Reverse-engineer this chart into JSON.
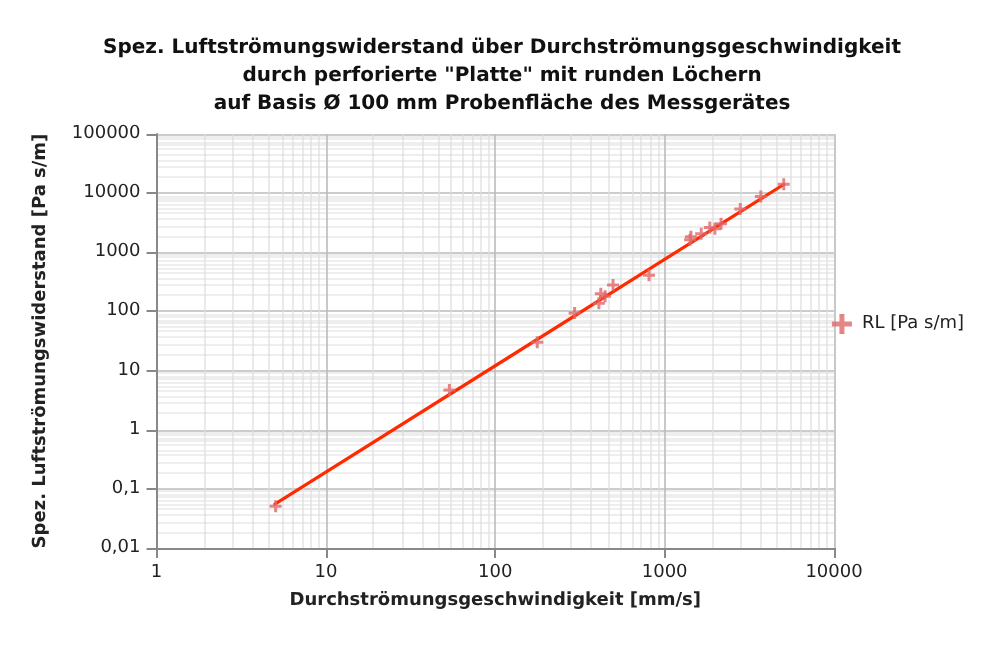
{
  "chart_data": {
    "type": "scatter",
    "title": "Spez. Luftströmungswiderstand über Durchströmungsgeschwindigkeit\ndurch perforierte \"Platte\" mit runden Löchern\nauf Basis Ø 100 mm Probenfläche des Messgerätes",
    "xlabel": "Durchströmungsgeschwindigkeit [mm/s]",
    "ylabel": "Spez. Luftströmungswiderstand [Pa s/m]",
    "log": "xy",
    "grid": true,
    "legend": "right",
    "marker": "cross",
    "xlim": [
      1,
      10000
    ],
    "xticks": [
      1,
      10,
      100,
      1000,
      10000
    ],
    "ylim": [
      0.01,
      100000
    ],
    "yticks": [
      {
        "value": 0.01,
        "label": "0,01"
      },
      {
        "value": 0.1,
        "label": "0,1"
      },
      1,
      10,
      100,
      1000,
      10000,
      100000
    ],
    "series": [
      {
        "name": "RL [Pa s/m]",
        "color": "#e06666",
        "x": [
          5.05,
          53.6,
          177,
          294,
          409,
          420,
          445,
          496,
          809,
          1413,
          1430,
          1644,
          1849,
          1980,
          2153,
          2797,
          3698,
          5050
        ],
        "values": [
          0.051,
          4.7,
          30,
          94,
          138,
          199,
          181,
          279,
          410,
          1622,
          1828,
          2061,
          2624,
          2500,
          3034,
          5410,
          8750,
          14200
        ]
      },
      {
        "type": "line",
        "color": "#ff2a00",
        "marker": "none",
        "x": [
          5,
          5050
        ],
        "values": [
          0.055,
          14000
        ]
      }
    ]
  }
}
